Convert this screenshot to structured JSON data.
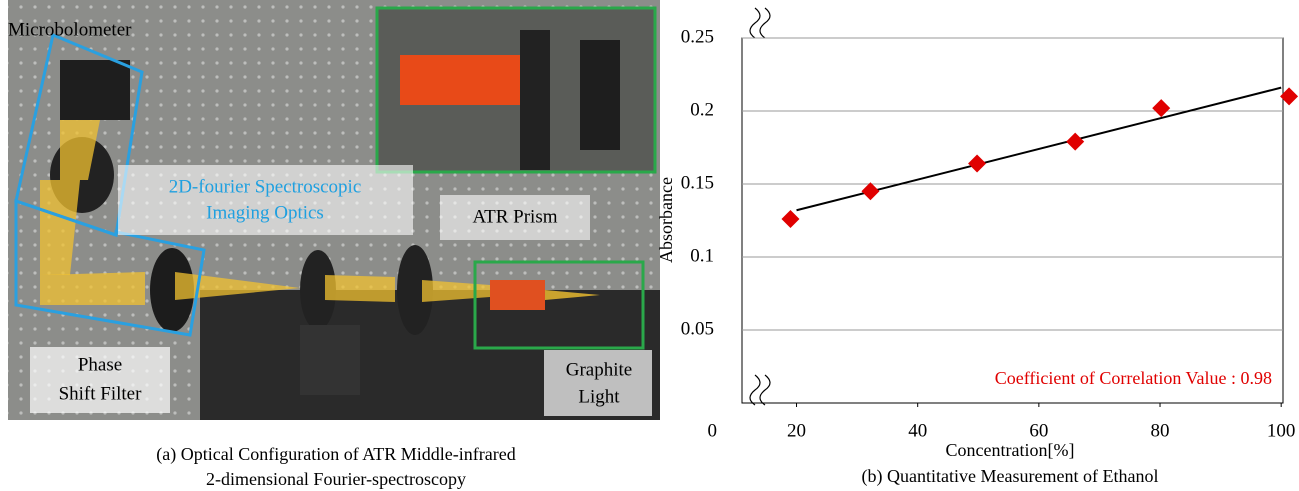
{
  "figure_a": {
    "labels": {
      "microbolometer": [
        "Microbolometer"
      ],
      "optics": [
        "2D-fourier Spectroscopic",
        "Imaging Optics"
      ],
      "prism": [
        "ATR Prism"
      ],
      "filter": [
        "Phase",
        "Shift Filter"
      ],
      "light": [
        "Graphite",
        "Light"
      ]
    },
    "caption": [
      "(a) Optical Configuration of ATR Middle-infrared",
      "2-dimensional Fourier-spectroscopy"
    ]
  },
  "chart_data": {
    "type": "scatter",
    "x_label": "Concentration[%]",
    "y_label": "Absorbance",
    "caption": "(b) Quantitative Measurement of Ethanol",
    "annotation": "Coefficient of Correlation Value : 0.98",
    "annotation_color": "#e00000",
    "x": [
      19.0,
      32.2,
      49.8,
      66.0,
      80.2,
      101.3
    ],
    "values": [
      0.126,
      0.145,
      0.164,
      0.179,
      0.202,
      0.21
    ],
    "color": "#e00000",
    "trendline": {
      "x": [
        20,
        100
      ],
      "values": [
        0.132,
        0.216
      ],
      "color": "#000000"
    },
    "xlim": [
      11,
      100.3
    ],
    "ylim": [
      0,
      0.25
    ],
    "xticks": [
      20,
      40,
      60,
      80,
      100
    ],
    "yticks": [
      0,
      0.05,
      0.1,
      0.15,
      0.2,
      0.25
    ],
    "grid": true
  }
}
